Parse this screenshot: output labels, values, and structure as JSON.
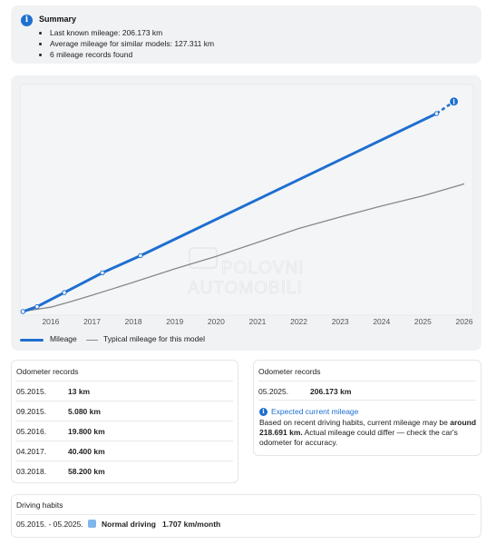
{
  "summary": {
    "icon": "info-icon",
    "title": "Summary",
    "items": [
      "Last known mileage: 206.173 km",
      "Average mileage for similar models: 127.311 km",
      "6 mileage records found"
    ]
  },
  "chart_data": {
    "type": "line",
    "x_tick_labels": [
      "2016",
      "2017",
      "2018",
      "2019",
      "2020",
      "2021",
      "2022",
      "2023",
      "2024",
      "2025",
      "2026"
    ],
    "xlim": [
      2015.3,
      2026.0
    ],
    "ylim": [
      0,
      227000
    ],
    "grid": false,
    "legend_position": "bottom-left",
    "series": [
      {
        "name": "Mileage",
        "color": "#1e6fd0",
        "points": [
          [
            2015.33,
            13
          ],
          [
            2015.67,
            5080
          ],
          [
            2016.33,
            19800
          ],
          [
            2017.25,
            40400
          ],
          [
            2018.17,
            58200
          ],
          [
            2025.33,
            206173
          ]
        ],
        "projection": {
          "from": [
            2025.33,
            206173
          ],
          "to": [
            2025.75,
            218691
          ],
          "style": "dashed",
          "marker": "info-icon"
        }
      },
      {
        "name": "Typical mileage for this model",
        "color": "#888888",
        "points": [
          [
            2015.3,
            0
          ],
          [
            2016.0,
            4500
          ],
          [
            2016.5,
            10500
          ],
          [
            2017.0,
            17000
          ],
          [
            2018.0,
            30500
          ],
          [
            2019.0,
            44500
          ],
          [
            2020.0,
            57500
          ],
          [
            2021.0,
            72000
          ],
          [
            2022.0,
            86500
          ],
          [
            2023.0,
            98500
          ],
          [
            2024.0,
            110000
          ],
          [
            2025.0,
            120500
          ],
          [
            2026.0,
            133000
          ]
        ]
      }
    ]
  },
  "watermark": "POLOVNI AUTOMOBILI",
  "records": {
    "title": "Odometer records",
    "rows": [
      {
        "date": "05.2015.",
        "value": "13 km"
      },
      {
        "date": "09.2015.",
        "value": "5.080 km"
      },
      {
        "date": "05.2016.",
        "value": "19.800 km"
      },
      {
        "date": "04.2017.",
        "value": "40.400 km"
      },
      {
        "date": "03.2018.",
        "value": "58.200 km"
      }
    ]
  },
  "records_right": {
    "title": "Odometer records",
    "row": {
      "date": "05.2025.",
      "value": "206.173 km"
    },
    "expected": {
      "icon": "info-icon",
      "title": "Expected current mileage",
      "text_before": "Based on recent driving habits, current mileage may be ",
      "text_bold": "around 218.691 km.",
      "text_after": " Actual mileage could differ — check the car's odometer for accuracy."
    }
  },
  "habits": {
    "title": "Driving habits",
    "period": "05.2015. - 05.2025.",
    "label": "Normal driving",
    "rate": "1.707 km/month",
    "color": "#7fb6ea"
  }
}
